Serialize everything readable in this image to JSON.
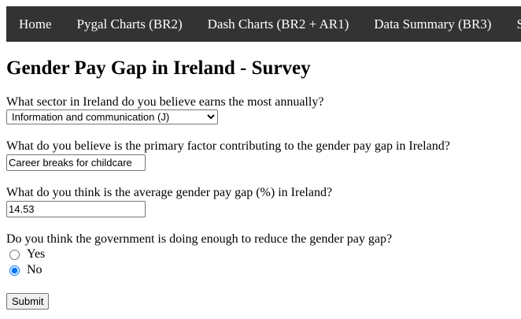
{
  "nav": {
    "items": [
      {
        "label": "Home"
      },
      {
        "label": "Pygal Charts (BR2)"
      },
      {
        "label": "Dash Charts (BR2 + AR1)"
      },
      {
        "label": "Data Summary (BR3)"
      },
      {
        "label": "Survey"
      }
    ]
  },
  "page": {
    "title": "Gender Pay Gap in Ireland - Survey"
  },
  "form": {
    "q1": {
      "question": "What sector in Ireland do you believe earns the most annually?",
      "selected": "Information and communication (J)"
    },
    "q2": {
      "question": "What do you believe is the primary factor contributing to the gender pay gap in Ireland?",
      "value": "Career breaks for childcare"
    },
    "q3": {
      "question": "What do you think is the average gender pay gap (%) in Ireland?",
      "value": "14.53"
    },
    "q4": {
      "question": "Do you think the government is doing enough to reduce the gender pay gap?",
      "options": [
        {
          "label": "Yes",
          "checked": false
        },
        {
          "label": "No",
          "checked": true
        }
      ]
    },
    "submit_label": "Submit"
  },
  "colors": {
    "navbar_bg": "#333333",
    "nav_text": "#ffffff"
  }
}
